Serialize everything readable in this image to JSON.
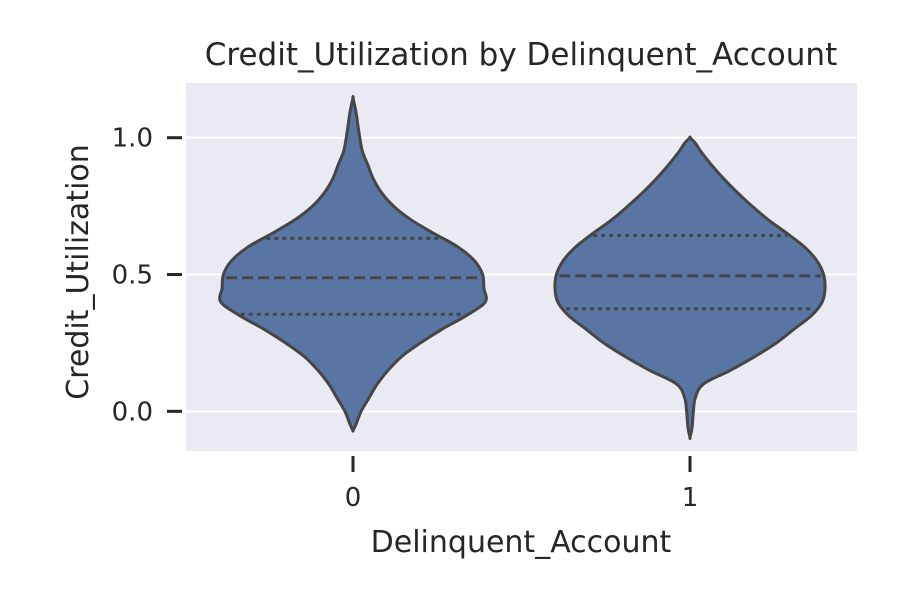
{
  "chart_data": {
    "type": "violin",
    "title": "Credit_Utilization by Delinquent_Account",
    "xlabel": "Delinquent_Account",
    "ylabel": "Credit_Utilization",
    "categories": [
      "0",
      "1"
    ],
    "ylim": [
      -0.145,
      1.2
    ],
    "yticks": [
      0.0,
      0.5,
      1.0
    ],
    "ytick_labels": [
      "0.0",
      "0.5",
      "1.0"
    ],
    "grid": true,
    "background": "#eaeaf2",
    "violin_color": "#5875a4",
    "line_color": "#464646",
    "violins": [
      {
        "category": "0",
        "q1": 0.355,
        "median": 0.488,
        "q3": 0.632,
        "density": [
          [
            -0.07,
            0.0
          ],
          [
            -0.05,
            0.02
          ],
          [
            0.0,
            0.06
          ],
          [
            0.05,
            0.12
          ],
          [
            0.1,
            0.18
          ],
          [
            0.15,
            0.26
          ],
          [
            0.2,
            0.36
          ],
          [
            0.25,
            0.5
          ],
          [
            0.3,
            0.66
          ],
          [
            0.35,
            0.84
          ],
          [
            0.4,
            0.98
          ],
          [
            0.45,
            0.97
          ],
          [
            0.5,
            0.96
          ],
          [
            0.55,
            0.9
          ],
          [
            0.6,
            0.78
          ],
          [
            0.65,
            0.6
          ],
          [
            0.7,
            0.43
          ],
          [
            0.75,
            0.3
          ],
          [
            0.8,
            0.21
          ],
          [
            0.85,
            0.15
          ],
          [
            0.9,
            0.11
          ],
          [
            0.95,
            0.07
          ],
          [
            1.0,
            0.05
          ],
          [
            1.05,
            0.035
          ],
          [
            1.1,
            0.02
          ],
          [
            1.145,
            0.0
          ]
        ]
      },
      {
        "category": "1",
        "q1": 0.375,
        "median": 0.495,
        "q3": 0.642,
        "density": [
          [
            -0.095,
            0.0
          ],
          [
            -0.06,
            0.015
          ],
          [
            0.0,
            0.025
          ],
          [
            0.05,
            0.04
          ],
          [
            0.1,
            0.1
          ],
          [
            0.15,
            0.3
          ],
          [
            0.2,
            0.48
          ],
          [
            0.25,
            0.64
          ],
          [
            0.3,
            0.77
          ],
          [
            0.35,
            0.9
          ],
          [
            0.4,
            0.98
          ],
          [
            0.45,
            1.0
          ],
          [
            0.5,
            0.99
          ],
          [
            0.55,
            0.94
          ],
          [
            0.6,
            0.85
          ],
          [
            0.65,
            0.72
          ],
          [
            0.7,
            0.58
          ],
          [
            0.75,
            0.46
          ],
          [
            0.8,
            0.35
          ],
          [
            0.85,
            0.25
          ],
          [
            0.9,
            0.16
          ],
          [
            0.95,
            0.08
          ],
          [
            0.98,
            0.04
          ],
          [
            1.0,
            0.0
          ]
        ]
      }
    ]
  }
}
